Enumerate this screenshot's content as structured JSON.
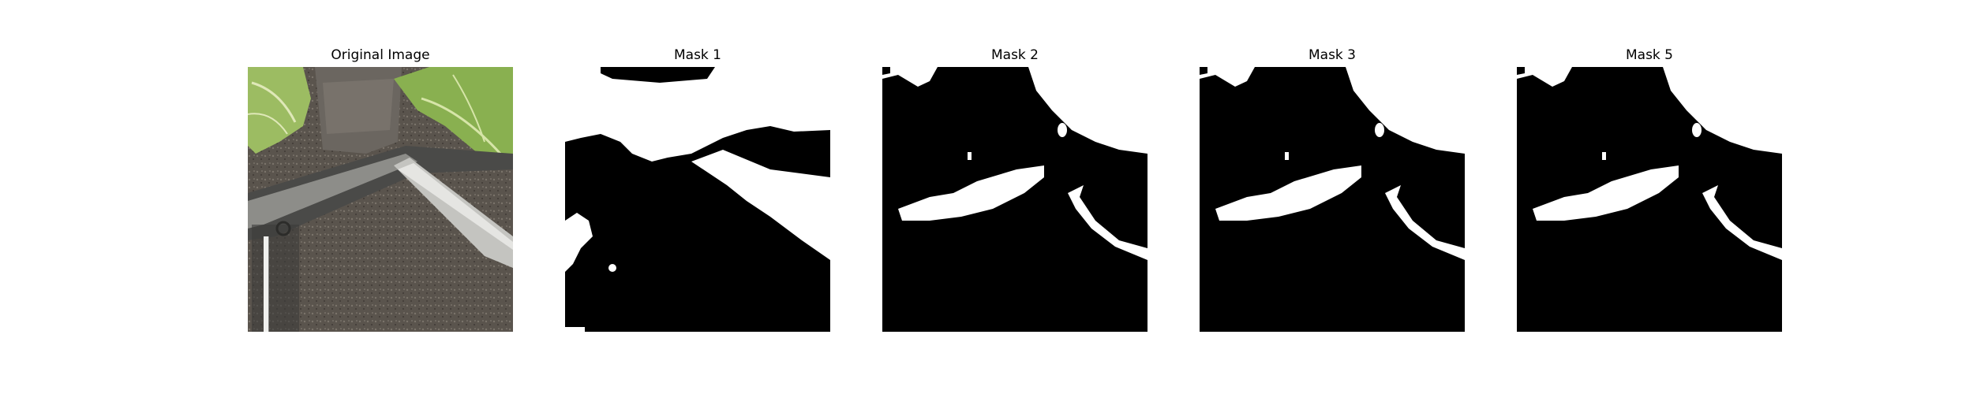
{
  "panels": [
    {
      "title": "Original Image",
      "kind": "photo"
    },
    {
      "title": "Mask 1",
      "kind": "mask"
    },
    {
      "title": "Mask 2",
      "kind": "mask"
    },
    {
      "title": "Mask 3",
      "kind": "mask"
    },
    {
      "title": "Mask 5",
      "kind": "mask"
    }
  ],
  "colors": {
    "background": "#ffffff",
    "mask_foreground": "#ffffff",
    "mask_background": "#000000",
    "ground": "#5b554e",
    "leaf": "#8fb457",
    "rail": "#b6b6b2"
  }
}
